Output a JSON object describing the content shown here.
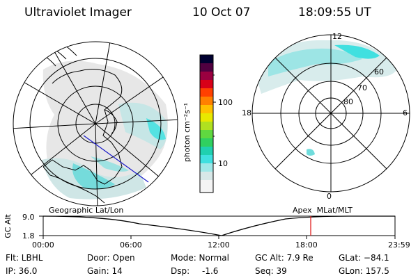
{
  "header": {
    "title": "Ultraviolet Imager",
    "date": "10 Oct 07",
    "time": "18:09:55 UT"
  },
  "colorbar": {
    "unit_label": "photon cm⁻²s⁻¹",
    "tick_100": "100",
    "tick_10": "10",
    "colors": [
      "#f0f0f0",
      "#dcdcdc",
      "#c8e8e8",
      "#40e0e0",
      "#20c8a0",
      "#40d040",
      "#a0e040",
      "#e0e000",
      "#ffc000",
      "#ff8000",
      "#ff4000",
      "#e00000",
      "#c00040",
      "#800040",
      "#400030",
      "#000020"
    ]
  },
  "left_map": {
    "caption": "Geographic Lat/Lon"
  },
  "right_map": {
    "caption": "Apex  MLat/MLT",
    "mlt_top": "12",
    "mlt_left": "18",
    "mlt_right": "6",
    "mlt_bottom": "0",
    "lat_60": "60",
    "lat_70": "70",
    "lat_80": "80"
  },
  "altitude_plot": {
    "ylabel": "GC Alt",
    "y_top": "9.0",
    "y_bottom": "1.8",
    "x_ticks": [
      "00:00",
      "06:00",
      "12:00",
      "18:00",
      "23:59"
    ],
    "marker_color": "#e02020"
  },
  "footer": {
    "flt_label": "Flt: LBHL",
    "ip_label": "IP: 36.0",
    "door_label": "Door: Open",
    "gain_label": "Gain: 14",
    "mode_label": "Mode: Normal",
    "dsp_label": "Dsp:",
    "dsp_value": "-1.6",
    "gcalt_label": "GC Alt: 7.9 Re",
    "seq_label": "Seq: 39",
    "glat_label": "GLat: −84.1",
    "glon_label": "GLon: 157.5"
  }
}
